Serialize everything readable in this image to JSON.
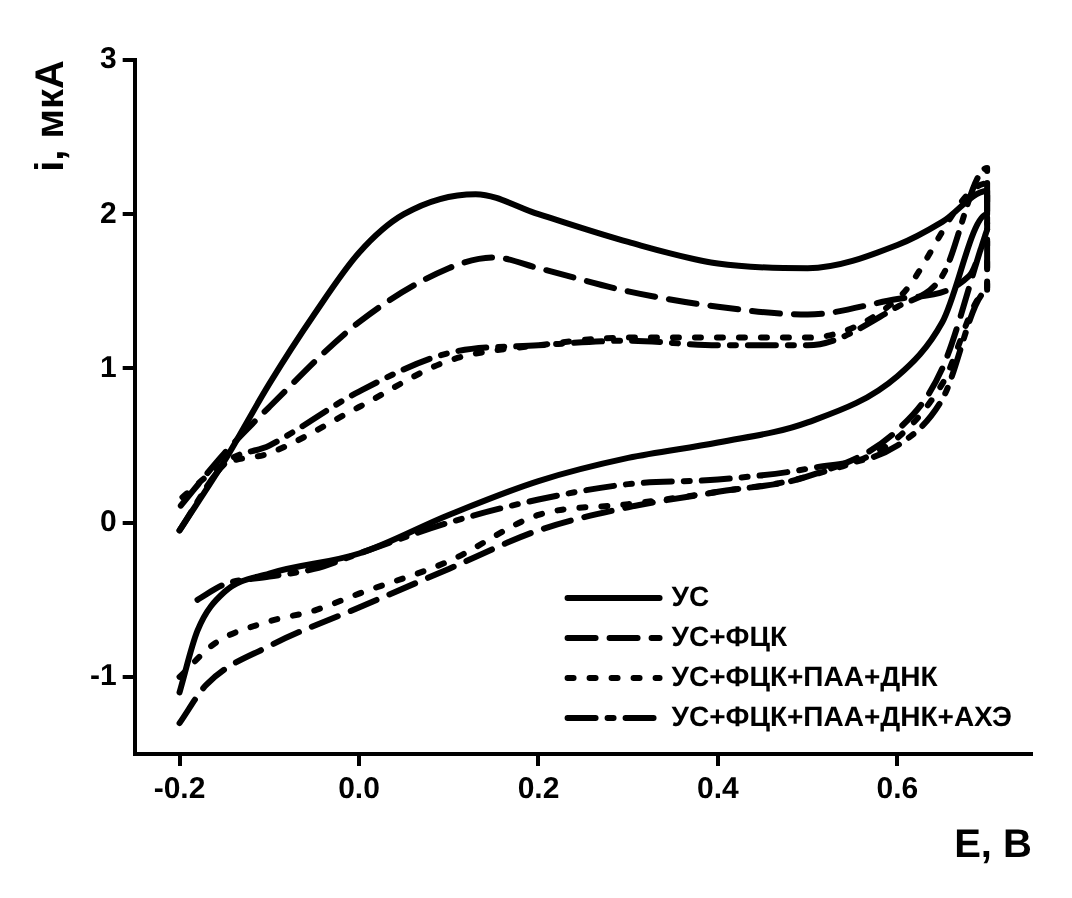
{
  "chart_data": {
    "type": "line",
    "xlabel": "E, В",
    "ylabel": "i, мкА",
    "xlim": [
      -0.25,
      0.75
    ],
    "ylim": [
      -1.5,
      3
    ],
    "xticks": [
      {
        "value": -0.2,
        "label": "-0.2"
      },
      {
        "value": 0,
        "label": "0.0"
      },
      {
        "value": 0.2,
        "label": "0.2"
      },
      {
        "value": 0.4,
        "label": "0.4"
      },
      {
        "value": 0.6,
        "label": "0.6"
      }
    ],
    "yticks": [
      -1,
      0,
      1,
      2,
      3
    ],
    "grid": false,
    "legend": "bottom right",
    "marker": "none",
    "series": [
      {
        "name": "УС",
        "color": "#000000",
        "line_style": "solid",
        "x": [
          -0.2,
          -0.18,
          -0.15,
          -0.1,
          0,
          0.1,
          0.2,
          0.3,
          0.4,
          0.5,
          0.6,
          0.65,
          0.7,
          0.7,
          0.65,
          0.6,
          0.5,
          0.4,
          0.3,
          0.2,
          0.13,
          0.05,
          0,
          -0.05,
          -0.1,
          -0.15,
          -0.2
        ],
        "values": [
          -1.1,
          -0.7,
          -0.45,
          -0.33,
          -0.2,
          0.05,
          0.27,
          0.42,
          0.52,
          0.65,
          0.95,
          1.3,
          2.0,
          2.15,
          1.95,
          1.8,
          1.65,
          1.68,
          1.82,
          2.0,
          2.13,
          2.0,
          1.75,
          1.35,
          0.9,
          0.4,
          -0.05
        ]
      },
      {
        "name": "УС+ФЦК",
        "color": "#000000",
        "line_style": "dashed",
        "x": [
          -0.2,
          -0.17,
          -0.1,
          0,
          0.1,
          0.2,
          0.3,
          0.4,
          0.5,
          0.6,
          0.65,
          0.7,
          0.68,
          0.6,
          0.5,
          0.4,
          0.3,
          0.2,
          0.15,
          0.1,
          0,
          -0.1,
          -0.15,
          -0.2
        ],
        "values": [
          -1.3,
          -1.05,
          -0.8,
          -0.55,
          -0.3,
          -0.05,
          0.1,
          0.2,
          0.3,
          0.6,
          1.0,
          1.9,
          1.6,
          1.45,
          1.35,
          1.4,
          1.5,
          1.65,
          1.72,
          1.65,
          1.3,
          0.75,
          0.45,
          0.1
        ]
      },
      {
        "name": "УС+ФЦК+ПАА+ДНК",
        "color": "#000000",
        "line_style": "dotted",
        "x": [
          -0.2,
          -0.16,
          -0.1,
          -0.05,
          0,
          0.1,
          0.2,
          0.3,
          0.4,
          0.5,
          0.6,
          0.65,
          0.7,
          0.7,
          0.6,
          0.5,
          0.4,
          0.3,
          0.2,
          0.1,
          0,
          -0.1,
          -0.15,
          -0.2
        ],
        "values": [
          -1.0,
          -0.78,
          -0.64,
          -0.57,
          -0.46,
          -0.25,
          0.05,
          0.12,
          0.2,
          0.3,
          0.55,
          0.9,
          1.5,
          2.2,
          1.45,
          1.2,
          1.2,
          1.2,
          1.15,
          1.05,
          0.75,
          0.45,
          0.38,
          0.15
        ]
      },
      {
        "name": "УС+ФЦК+ПАА+ДНК+АХЭ",
        "color": "#000000",
        "line_style": "dashdot",
        "x": [
          -0.18,
          -0.15,
          -0.1,
          -0.05,
          0,
          0.1,
          0.2,
          0.3,
          0.4,
          0.5,
          0.6,
          0.65,
          0.7,
          0.7,
          0.65,
          0.6,
          0.5,
          0.4,
          0.3,
          0.2,
          0.1,
          0,
          -0.1,
          -0.15,
          -0.2
        ],
        "values": [
          -0.5,
          -0.4,
          -0.35,
          -0.3,
          -0.2,
          0.0,
          0.15,
          0.25,
          0.28,
          0.35,
          0.5,
          0.8,
          1.5,
          2.3,
          1.6,
          1.4,
          1.15,
          1.15,
          1.18,
          1.15,
          1.1,
          0.85,
          0.5,
          0.38,
          -0.05
        ]
      }
    ]
  }
}
